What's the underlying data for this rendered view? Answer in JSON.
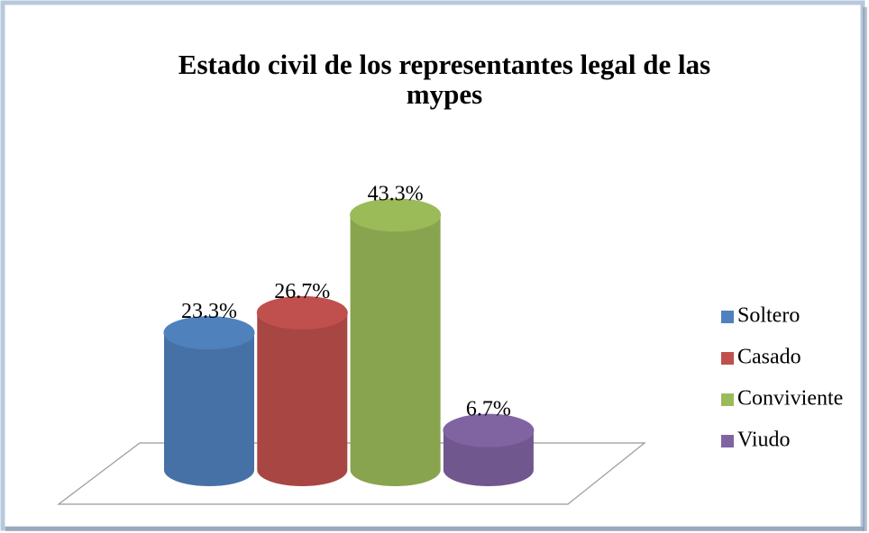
{
  "chart_data": {
    "type": "bar",
    "title": "Estado civil de los representantes legal de las mypes",
    "series": [
      {
        "name": "Soltero",
        "color": "#4f81bd",
        "values": [
          23.3
        ],
        "value_labels": [
          "23.3%"
        ]
      },
      {
        "name": "Casado",
        "color": "#c0504d",
        "values": [
          26.7
        ],
        "value_labels": [
          "26.7%"
        ]
      },
      {
        "name": "Conviviente",
        "color": "#9bbb59",
        "values": [
          43.3
        ],
        "value_labels": [
          "43.3%"
        ]
      },
      {
        "name": "Viudo",
        "color": "#8064a2",
        "values": [
          6.7
        ],
        "value_labels": [
          "6.7%"
        ]
      }
    ],
    "legend": "right"
  }
}
